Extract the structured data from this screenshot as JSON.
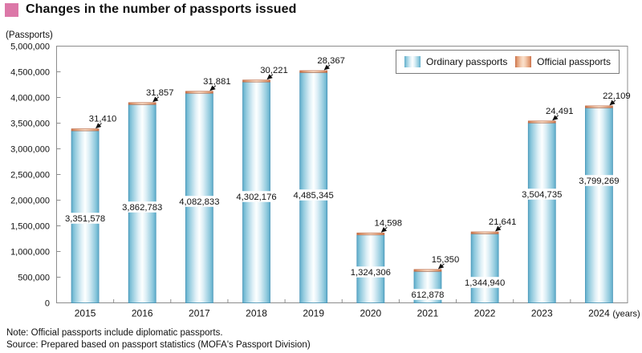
{
  "title": "Changes in the number of passports issued",
  "y_axis_unit": "(Passports)",
  "x_axis_unit": "(years)",
  "notes": {
    "note": "Note: Official passports include diplomatic passports.",
    "source": "Source: Prepared based on passport statistics (MOFA's Passport Division)"
  },
  "colors": {
    "title_bullet": "#dc78a8",
    "ordinary_bar": "#5fadca",
    "official_bar": "#c96f4a",
    "axis": "#8c8c8c",
    "text": "#111111"
  },
  "chart_data": {
    "type": "bar",
    "stacked": true,
    "title": "Changes in the number of passports issued",
    "categories": [
      "2015",
      "2016",
      "2017",
      "2018",
      "2019",
      "2020",
      "2021",
      "2022",
      "2023",
      "2024"
    ],
    "series": [
      {
        "name": "Ordinary passports",
        "values": [
          3351578,
          3862783,
          4082833,
          4302176,
          4485345,
          1324306,
          612878,
          1344940,
          3504735,
          3799269
        ]
      },
      {
        "name": "Official passports",
        "values": [
          31410,
          31857,
          31881,
          30221,
          28367,
          14598,
          15350,
          21641,
          24491,
          22109
        ]
      }
    ],
    "ylabel": "(Passports)",
    "xlabel": "(years)",
    "ylim": [
      0,
      5000000
    ],
    "ytick_step": 500000,
    "grid": false,
    "legend_position": "top-right"
  }
}
